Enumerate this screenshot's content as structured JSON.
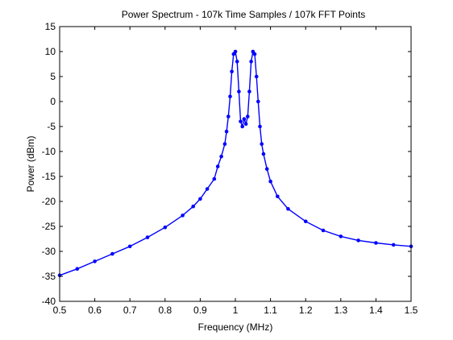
{
  "chart_data": {
    "type": "line",
    "title": "Power Spectrum - 107k Time Samples / 107k FFT Points",
    "xlabel": "Frequency (MHz)",
    "ylabel": "Power (dBm)",
    "xlim": [
      0.5,
      1.5
    ],
    "ylim": [
      -40,
      15
    ],
    "xticks": [
      0.5,
      0.6,
      0.7,
      0.8,
      0.9,
      1.0,
      1.1,
      1.2,
      1.3,
      1.4,
      1.5
    ],
    "xtick_labels": [
      "0.5",
      "0.6",
      "0.7",
      "0.8",
      "0.9",
      "1",
      "1.1",
      "1.2",
      "1.3",
      "1.4",
      "1.5"
    ],
    "yticks": [
      15,
      10,
      5,
      0,
      -5,
      -10,
      -15,
      -20,
      -25,
      -30,
      -35,
      -40
    ],
    "ytick_labels": [
      "15",
      "10",
      "5",
      "0",
      "-5",
      "-10",
      "-15",
      "-20",
      "-25",
      "-30",
      "-35",
      "-40"
    ],
    "grid": false,
    "legend": "none",
    "series": [
      {
        "color": "#0000ff",
        "marker": "dot",
        "x": [
          0.5,
          0.55,
          0.6,
          0.65,
          0.7,
          0.75,
          0.8,
          0.85,
          0.88,
          0.9,
          0.92,
          0.94,
          0.95,
          0.96,
          0.97,
          0.975,
          0.98,
          0.985,
          0.99,
          0.995,
          1.0,
          1.005,
          1.01,
          1.015,
          1.02,
          1.025,
          1.03,
          1.035,
          1.04,
          1.045,
          1.05,
          1.055,
          1.06,
          1.065,
          1.07,
          1.075,
          1.08,
          1.09,
          1.1,
          1.12,
          1.15,
          1.2,
          1.25,
          1.3,
          1.35,
          1.4,
          1.45,
          1.5
        ],
        "y": [
          -34.8,
          -33.5,
          -32.0,
          -30.5,
          -29.0,
          -27.2,
          -25.2,
          -22.8,
          -21.0,
          -19.5,
          -17.5,
          -15.5,
          -13.0,
          -11.0,
          -8.5,
          -6.0,
          -3.0,
          1.0,
          6.0,
          9.5,
          10.0,
          8.0,
          2.0,
          -4.0,
          -5.0,
          -3.5,
          -4.5,
          -3.0,
          2.0,
          8.0,
          10.0,
          9.5,
          5.0,
          0.0,
          -5.0,
          -8.5,
          -10.5,
          -13.5,
          -16.0,
          -19.0,
          -21.5,
          -24.0,
          -25.8,
          -27.0,
          -27.8,
          -28.3,
          -28.7,
          -29.0
        ]
      }
    ]
  }
}
